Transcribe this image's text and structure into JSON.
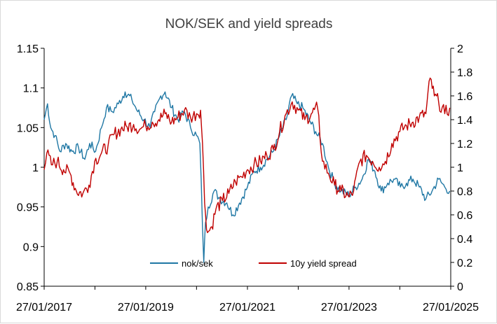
{
  "chart_data": {
    "type": "line",
    "title": "NOK/SEK and yield spreads",
    "x_axis": {
      "tick_labels": [
        "27/01/2017",
        "27/01/2019",
        "27/01/2021",
        "27/01/2023",
        "27/01/2025"
      ],
      "range": [
        "2017-01-27",
        "2025-01-27"
      ]
    },
    "y_left": {
      "ylim": [
        0.85,
        1.15
      ],
      "tick_labels": [
        "0.85",
        "0.9",
        "0.95",
        "1",
        "1.05",
        "1.1",
        "1.15"
      ],
      "tick_values": [
        0.85,
        0.9,
        0.95,
        1.0,
        1.05,
        1.1,
        1.15
      ]
    },
    "y_right": {
      "ylim": [
        0,
        2
      ],
      "tick_labels": [
        "0",
        "0.2",
        "0.4",
        "0.6",
        "0.8",
        "1",
        "1.2",
        "1.4",
        "1.6",
        "1.8",
        "2"
      ],
      "tick_values": [
        0,
        0.2,
        0.4,
        0.6,
        0.8,
        1.0,
        1.2,
        1.4,
        1.6,
        1.8,
        2.0
      ]
    },
    "grid": false,
    "legend_position": "bottom-inside",
    "series": [
      {
        "name": "nok/sek",
        "axis": "left",
        "color": "#1f77a4",
        "points": [
          [
            "2017-01-27",
            1.06
          ],
          [
            "2017-02-20",
            1.08
          ],
          [
            "2017-03-15",
            1.05
          ],
          [
            "2017-04-15",
            1.04
          ],
          [
            "2017-05-20",
            1.02
          ],
          [
            "2017-07-01",
            1.03
          ],
          [
            "2017-08-15",
            1.02
          ],
          [
            "2017-10-01",
            1.025
          ],
          [
            "2017-11-15",
            1.01
          ],
          [
            "2017-12-20",
            1.03
          ],
          [
            "2018-02-01",
            1.02
          ],
          [
            "2018-03-15",
            1.05
          ],
          [
            "2018-04-20",
            1.075
          ],
          [
            "2018-06-01",
            1.07
          ],
          [
            "2018-07-15",
            1.08
          ],
          [
            "2018-09-01",
            1.095
          ],
          [
            "2018-10-20",
            1.085
          ],
          [
            "2018-12-01",
            1.07
          ],
          [
            "2019-01-15",
            1.06
          ],
          [
            "2019-02-27",
            1.05
          ],
          [
            "2019-04-01",
            1.07
          ],
          [
            "2019-05-15",
            1.09
          ],
          [
            "2019-06-15",
            1.095
          ],
          [
            "2019-08-01",
            1.075
          ],
          [
            "2019-09-15",
            1.06
          ],
          [
            "2019-11-01",
            1.07
          ],
          [
            "2019-12-15",
            1.05
          ],
          [
            "2020-01-27",
            1.04
          ],
          [
            "2020-02-20",
            1.03
          ],
          [
            "2020-03-19",
            0.88
          ],
          [
            "2020-03-31",
            0.93
          ],
          [
            "2020-04-20",
            0.95
          ],
          [
            "2020-06-01",
            0.97
          ],
          [
            "2020-07-15",
            0.96
          ],
          [
            "2020-09-01",
            0.955
          ],
          [
            "2020-10-15",
            0.94
          ],
          [
            "2020-12-01",
            0.955
          ],
          [
            "2021-01-27",
            0.975
          ],
          [
            "2021-03-15",
            0.995
          ],
          [
            "2021-05-01",
            1.0
          ],
          [
            "2021-06-15",
            1.01
          ],
          [
            "2021-08-01",
            1.02
          ],
          [
            "2021-09-15",
            1.04
          ],
          [
            "2021-11-01",
            1.06
          ],
          [
            "2021-12-10",
            1.09
          ],
          [
            "2022-01-20",
            1.08
          ],
          [
            "2022-03-01",
            1.075
          ],
          [
            "2022-04-15",
            1.06
          ],
          [
            "2022-06-01",
            1.045
          ],
          [
            "2022-07-20",
            1.03
          ],
          [
            "2022-09-01",
            1.0
          ],
          [
            "2022-10-15",
            0.98
          ],
          [
            "2022-12-01",
            0.97
          ],
          [
            "2023-01-27",
            0.965
          ],
          [
            "2023-03-15",
            0.975
          ],
          [
            "2023-05-01",
            0.985
          ],
          [
            "2023-06-15",
            1.01
          ],
          [
            "2023-08-01",
            0.995
          ],
          [
            "2023-09-15",
            0.97
          ],
          [
            "2023-11-01",
            0.98
          ],
          [
            "2023-12-15",
            0.985
          ],
          [
            "2024-02-01",
            0.975
          ],
          [
            "2024-03-15",
            0.98
          ],
          [
            "2024-05-01",
            0.985
          ],
          [
            "2024-06-15",
            0.975
          ],
          [
            "2024-08-01",
            0.96
          ],
          [
            "2024-09-15",
            0.97
          ],
          [
            "2024-11-01",
            0.985
          ],
          [
            "2024-12-15",
            0.975
          ],
          [
            "2025-01-20",
            0.97
          ]
        ]
      },
      {
        "name": "10y yield spread",
        "axis": "right",
        "color": "#c00000",
        "points": [
          [
            "2017-01-27",
            0.98
          ],
          [
            "2017-02-15",
            1.12
          ],
          [
            "2017-03-20",
            1.02
          ],
          [
            "2017-05-01",
            1.05
          ],
          [
            "2017-06-15",
            0.98
          ],
          [
            "2017-08-01",
            0.95
          ],
          [
            "2017-09-15",
            0.8
          ],
          [
            "2017-11-01",
            0.78
          ],
          [
            "2017-12-15",
            0.85
          ],
          [
            "2018-01-25",
            1.05
          ],
          [
            "2018-03-15",
            1.12
          ],
          [
            "2018-05-01",
            1.18
          ],
          [
            "2018-06-15",
            1.28
          ],
          [
            "2018-08-01",
            1.32
          ],
          [
            "2018-09-15",
            1.34
          ],
          [
            "2018-11-01",
            1.36
          ],
          [
            "2018-12-15",
            1.32
          ],
          [
            "2019-01-27",
            1.35
          ],
          [
            "2019-03-15",
            1.38
          ],
          [
            "2019-05-01",
            1.4
          ],
          [
            "2019-06-15",
            1.45
          ],
          [
            "2019-08-01",
            1.38
          ],
          [
            "2019-09-15",
            1.42
          ],
          [
            "2019-11-01",
            1.48
          ],
          [
            "2019-12-15",
            1.42
          ],
          [
            "2020-01-27",
            1.45
          ],
          [
            "2020-02-25",
            1.48
          ],
          [
            "2020-03-10",
            1.2
          ],
          [
            "2020-03-25",
            0.7
          ],
          [
            "2020-04-15",
            0.45
          ],
          [
            "2020-05-15",
            0.5
          ],
          [
            "2020-06-15",
            0.65
          ],
          [
            "2020-08-01",
            0.72
          ],
          [
            "2020-09-15",
            0.78
          ],
          [
            "2020-11-01",
            0.88
          ],
          [
            "2020-12-15",
            0.92
          ],
          [
            "2021-01-27",
            0.98
          ],
          [
            "2021-03-15",
            1.02
          ],
          [
            "2021-05-01",
            1.05
          ],
          [
            "2021-06-15",
            1.1
          ],
          [
            "2021-08-01",
            1.15
          ],
          [
            "2021-09-15",
            1.3
          ],
          [
            "2021-11-01",
            1.45
          ],
          [
            "2021-12-15",
            1.55
          ],
          [
            "2022-01-27",
            1.48
          ],
          [
            "2022-03-15",
            1.4
          ],
          [
            "2022-05-01",
            1.45
          ],
          [
            "2022-06-15",
            1.5
          ],
          [
            "2022-07-20",
            1.05
          ],
          [
            "2022-09-01",
            0.95
          ],
          [
            "2022-10-15",
            0.85
          ],
          [
            "2022-12-01",
            0.8
          ],
          [
            "2023-01-27",
            0.75
          ],
          [
            "2023-03-01",
            0.8
          ],
          [
            "2023-04-15",
            1.05
          ],
          [
            "2023-06-01",
            1.1
          ],
          [
            "2023-07-15",
            1.05
          ],
          [
            "2023-09-01",
            1.0
          ],
          [
            "2023-10-15",
            1.05
          ],
          [
            "2023-12-01",
            1.2
          ],
          [
            "2024-01-27",
            1.3
          ],
          [
            "2024-03-15",
            1.35
          ],
          [
            "2024-05-01",
            1.38
          ],
          [
            "2024-06-15",
            1.42
          ],
          [
            "2024-08-01",
            1.45
          ],
          [
            "2024-09-01",
            1.75
          ],
          [
            "2024-10-01",
            1.6
          ],
          [
            "2024-11-01",
            1.55
          ],
          [
            "2024-12-15",
            1.45
          ],
          [
            "2025-01-20",
            1.5
          ]
        ]
      }
    ]
  }
}
